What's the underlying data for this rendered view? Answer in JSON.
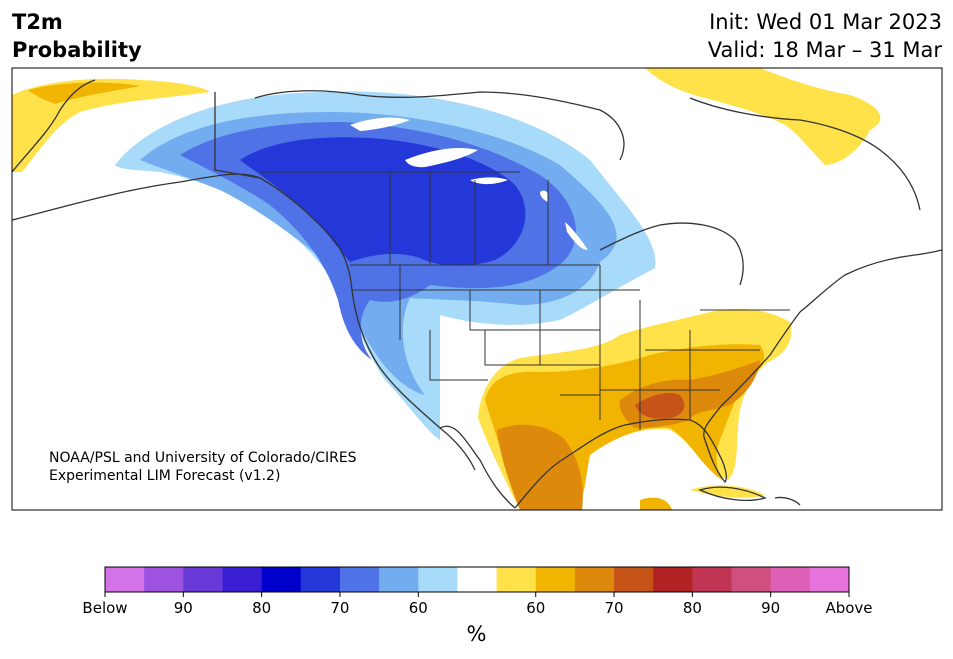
{
  "header": {
    "title_line1": "T2m",
    "title_line2": "Probability",
    "init": "Init: Wed 01 Mar 2023",
    "valid": "Valid: 18 Mar – 31 Mar"
  },
  "credit": {
    "line1": "NOAA/PSL and University of Colorado/CIRES",
    "line2": "Experimental LIM Forecast (v1.2)"
  },
  "colorbar": {
    "colors": [
      "#d472e8",
      "#9e52e0",
      "#6a3ad8",
      "#3a1fd2",
      "#0000cc",
      "#2437d8",
      "#4f73e6",
      "#74acf0",
      "#a8dafa",
      "#ffffff",
      "#ffe14a",
      "#f1b400",
      "#dd8a0c",
      "#c65418",
      "#b12222",
      "#c13453",
      "#cf4f80",
      "#dd60b6",
      "#e774dc"
    ],
    "tick_labels": [
      "Below",
      "90",
      "80",
      "70",
      "60",
      "60",
      "70",
      "80",
      "90",
      "Above"
    ],
    "unit": "%"
  },
  "map_colors": {
    "land": "#ffffff",
    "border": "#333333",
    "blue_1": "#a8dafa",
    "blue_2": "#74acf0",
    "blue_3": "#4f73e6",
    "blue_4": "#2437d8",
    "yellow_1": "#ffe14a",
    "yellow_2": "#f1b400",
    "orange_1": "#dd8a0c",
    "orange_2": "#c65418"
  }
}
